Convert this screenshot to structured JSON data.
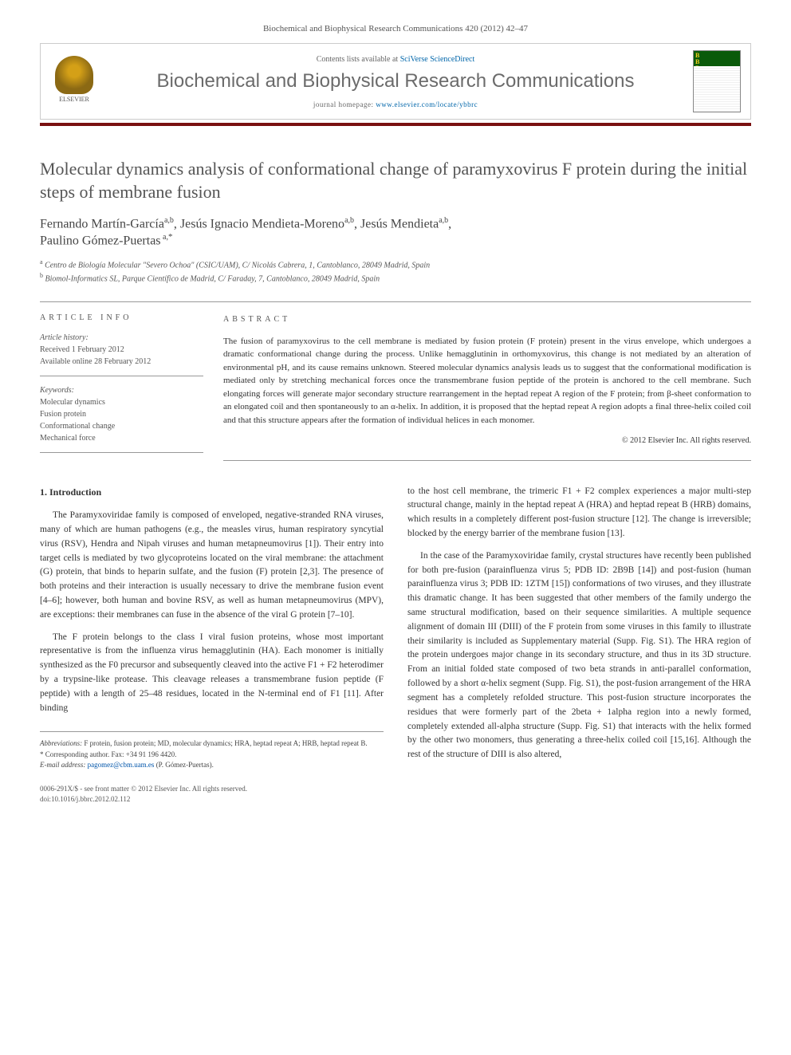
{
  "journal_ref": "Biochemical and Biophysical Research Communications 420 (2012) 42–47",
  "header": {
    "elsevier_label": "ELSEVIER",
    "contents_prefix": "Contents lists available at ",
    "sciverse": "SciVerse ScienceDirect",
    "journal_name": "Biochemical and Biophysical Research Communications",
    "homepage_prefix": "journal homepage: ",
    "homepage_url": "www.elsevier.com/locate/ybbrc",
    "cover_code": "B\nB\nR\nC"
  },
  "title": "Molecular dynamics analysis of conformational change of paramyxovirus F protein during the initial steps of membrane fusion",
  "authors_html": "Fernando Martín-García",
  "authors": [
    {
      "name": "Fernando Martín-García",
      "sup": "a,b"
    },
    {
      "name": "Jesús Ignacio Mendieta-Moreno",
      "sup": "a,b"
    },
    {
      "name": "Jesús Mendieta",
      "sup": "a,b"
    },
    {
      "name": "Paulino Gómez-Puertas",
      "sup": "a,*"
    }
  ],
  "affiliations": [
    {
      "sup": "a",
      "text": "Centro de Biología Molecular \"Severo Ochoa\" (CSIC/UAM), C/ Nicolás Cabrera, 1, Cantoblanco, 28049 Madrid, Spain"
    },
    {
      "sup": "b",
      "text": "Biomol-Informatics SL, Parque Científico de Madrid, C/ Faraday, 7, Cantoblanco, 28049 Madrid, Spain"
    }
  ],
  "article_info": {
    "header": "ARTICLE INFO",
    "history_label": "Article history:",
    "received": "Received 1 February 2012",
    "online": "Available online 28 February 2012",
    "keywords_label": "Keywords:",
    "keywords": [
      "Molecular dynamics",
      "Fusion protein",
      "Conformational change",
      "Mechanical force"
    ]
  },
  "abstract": {
    "header": "ABSTRACT",
    "text": "The fusion of paramyxovirus to the cell membrane is mediated by fusion protein (F protein) present in the virus envelope, which undergoes a dramatic conformational change during the process. Unlike hemagglutinin in orthomyxovirus, this change is not mediated by an alteration of environmental pH, and its cause remains unknown. Steered molecular dynamics analysis leads us to suggest that the conformational modification is mediated only by stretching mechanical forces once the transmembrane fusion peptide of the protein is anchored to the cell membrane. Such elongating forces will generate major secondary structure rearrangement in the heptad repeat A region of the F protein; from β-sheet conformation to an elongated coil and then spontaneously to an α-helix. In addition, it is proposed that the heptad repeat A region adopts a final three-helix coiled coil and that this structure appears after the formation of individual helices in each monomer.",
    "copyright": "© 2012 Elsevier Inc. All rights reserved."
  },
  "sections": {
    "intro_heading": "1. Introduction",
    "intro_p1": "The Paramyxoviridae family is composed of enveloped, negative-stranded RNA viruses, many of which are human pathogens (e.g., the measles virus, human respiratory syncytial virus (RSV), Hendra and Nipah viruses and human metapneumovirus [1]). Their entry into target cells is mediated by two glycoproteins located on the viral membrane: the attachment (G) protein, that binds to heparin sulfate, and the fusion (F) protein [2,3]. The presence of both proteins and their interaction is usually necessary to drive the membrane fusion event [4–6]; however, both human and bovine RSV, as well as human metapneumovirus (MPV), are exceptions: their membranes can fuse in the absence of the viral G protein [7–10].",
    "intro_p2": "The F protein belongs to the class I viral fusion proteins, whose most important representative is from the influenza virus hemagglutinin (HA). Each monomer is initially synthesized as the F0 precursor and subsequently cleaved into the active F1 + F2 heterodimer by a trypsine-like protease. This cleavage releases a transmembrane fusion peptide (F peptide) with a length of 25–48 residues, located in the N-terminal end of F1 [11]. After binding",
    "col2_p1": "to the host cell membrane, the trimeric F1 + F2 complex experiences a major multi-step structural change, mainly in the heptad repeat A (HRA) and heptad repeat B (HRB) domains, which results in a completely different post-fusion structure [12]. The change is irreversible; blocked by the energy barrier of the membrane fusion [13].",
    "col2_p2": "In the case of the Paramyxoviridae family, crystal structures have recently been published for both pre-fusion (parainfluenza virus 5; PDB ID: 2B9B [14]) and post-fusion (human parainfluenza virus 3; PDB ID: 1ZTM [15]) conformations of two viruses, and they illustrate this dramatic change. It has been suggested that other members of the family undergo the same structural modification, based on their sequence similarities. A multiple sequence alignment of domain III (DIII) of the F protein from some viruses in this family to illustrate their similarity is included as Supplementary material (Supp. Fig. S1). The HRA region of the protein undergoes major change in its secondary structure, and thus in its 3D structure. From an initial folded state composed of two beta strands in anti-parallel conformation, followed by a short α-helix segment (Supp. Fig. S1), the post-fusion arrangement of the HRA segment has a completely refolded structure. This post-fusion structure incorporates the residues that were formerly part of the 2beta + 1alpha region into a newly formed, completely extended all-alpha structure (Supp. Fig. S1) that interacts with the helix formed by the other two monomers, thus generating a three-helix coiled coil [15,16]. Although the rest of the structure of DIII is also altered,"
  },
  "footnotes": {
    "abbrev_label": "Abbreviations:",
    "abbrev_text": " F protein, fusion protein; MD, molecular dynamics; HRA, heptad repeat A; HRB, heptad repeat B.",
    "corresp_label": "* Corresponding author.",
    "corresp_text": " Fax: +34 91 196 4420.",
    "email_label": "E-mail address:",
    "email": " pagomez@cbm.uam.es",
    "email_suffix": " (P. Gómez-Puertas)."
  },
  "footer": {
    "line1": "0006-291X/$ - see front matter © 2012 Elsevier Inc. All rights reserved.",
    "line2": "doi:10.1016/j.bbrc.2012.02.112"
  },
  "colors": {
    "red_bar": "#7a1010",
    "link": "#0055aa",
    "text": "#333333",
    "muted": "#555555"
  }
}
